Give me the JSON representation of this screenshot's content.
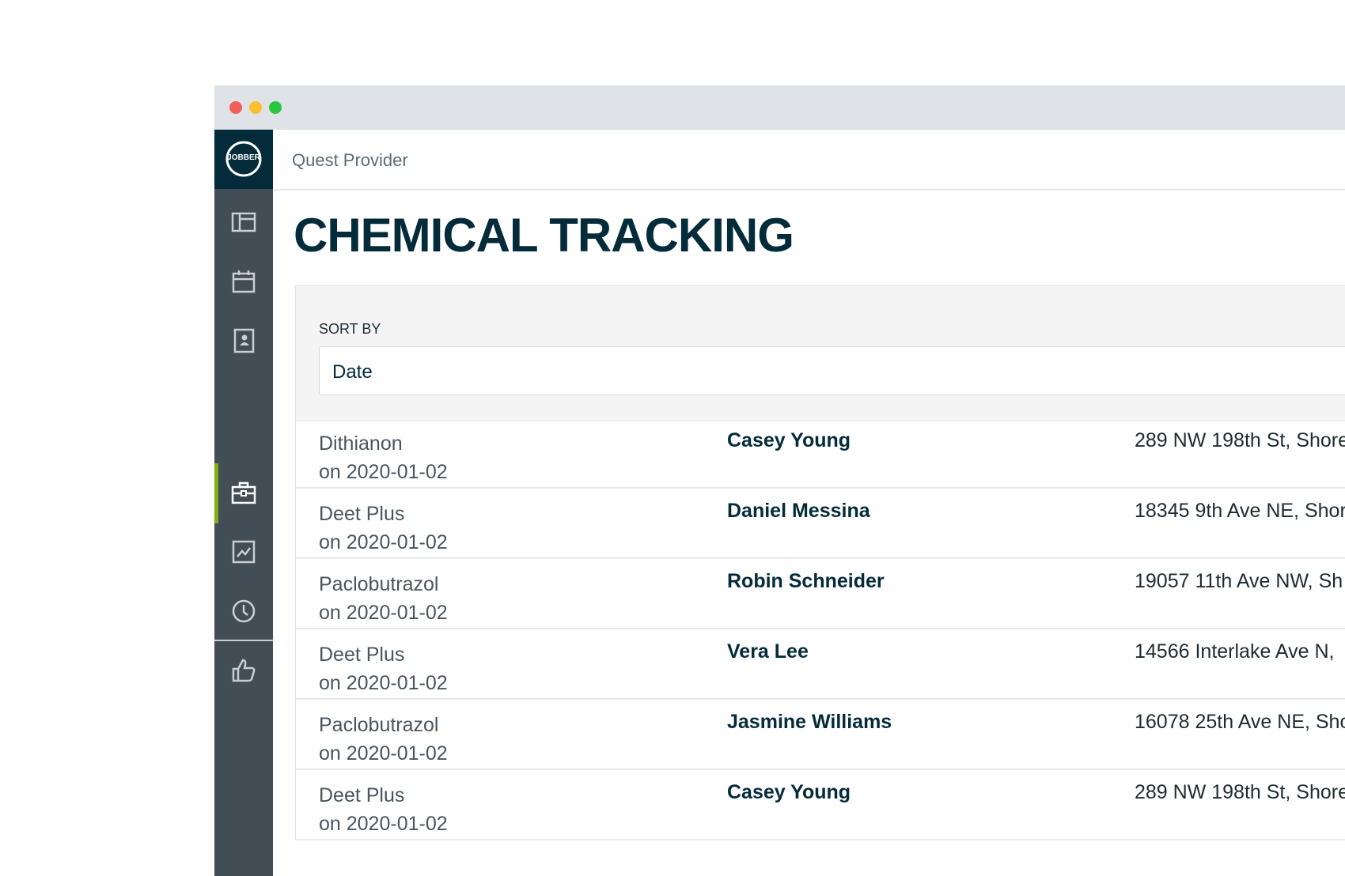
{
  "header": {
    "logo": "JOBBER",
    "app_name": "Quest Provider"
  },
  "title": "CHEMICAL TRACKING",
  "sort": {
    "label": "SORT BY",
    "value": "Date"
  },
  "table": {
    "rows": [
      [
        "Dithianon",
        "on 2020-01-02",
        "Casey Young",
        "289 NW 198th St, Shore"
      ],
      [
        "Deet Plus",
        "on 2020-01-02",
        "Daniel Messina",
        "18345 9th Ave NE, Shor"
      ],
      [
        "Paclobutrazol",
        "on 2020-01-02",
        "Robin Schneider",
        "19057 11th Ave NW, Sh"
      ],
      [
        "Deet Plus",
        "on 2020-01-02",
        "Vera Lee",
        "14566 Interlake Ave N, "
      ],
      [
        "Paclobutrazol",
        "on 2020-01-02",
        "Jasmine Williams",
        "16078 25th Ave NE, Sho"
      ],
      [
        "Deet Plus",
        "on 2020-01-02",
        "Casey Young",
        "289 NW 198th St, Shore"
      ]
    ]
  }
}
